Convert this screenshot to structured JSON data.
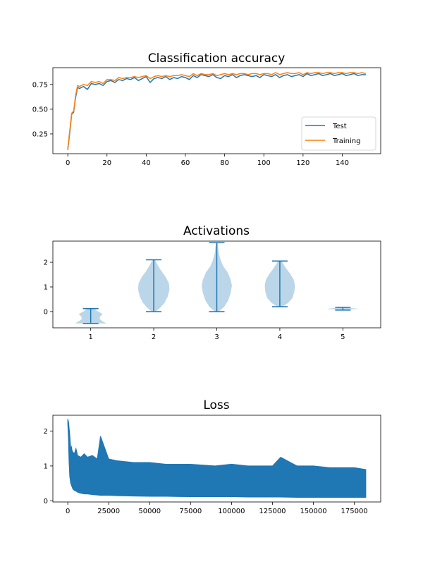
{
  "colors": {
    "test": "#1f77b4",
    "training": "#ff7f0e",
    "violin_fill": "#1f77b4",
    "axes": "#000000"
  },
  "chart_data": [
    {
      "type": "line",
      "title": "Classification accuracy",
      "xlim": [
        -7.6,
        159.6
      ],
      "ylim": [
        0.05,
        0.92
      ],
      "xticks": [
        0,
        20,
        40,
        60,
        80,
        100,
        120,
        140
      ],
      "yticks": [
        0.25,
        0.5,
        0.75
      ],
      "ytick_labels": [
        "0.25",
        "0.50",
        "0.75"
      ],
      "legend": "lower right",
      "series": [
        {
          "name": "Test",
          "color": "#1f77b4",
          "x": [
            0,
            1,
            2,
            3,
            4,
            5,
            6,
            8,
            10,
            12,
            14,
            16,
            18,
            20,
            22,
            24,
            26,
            28,
            30,
            32,
            34,
            36,
            38,
            40,
            42,
            44,
            46,
            48,
            50,
            52,
            54,
            56,
            58,
            60,
            62,
            64,
            66,
            68,
            70,
            72,
            74,
            76,
            78,
            80,
            82,
            84,
            86,
            88,
            90,
            92,
            94,
            96,
            98,
            100,
            102,
            104,
            106,
            108,
            110,
            112,
            114,
            116,
            118,
            120,
            122,
            124,
            126,
            128,
            130,
            132,
            134,
            136,
            138,
            140,
            142,
            144,
            146,
            148,
            150,
            152
          ],
          "y": [
            0.09,
            0.26,
            0.45,
            0.47,
            0.62,
            0.72,
            0.71,
            0.73,
            0.7,
            0.76,
            0.75,
            0.76,
            0.74,
            0.78,
            0.79,
            0.77,
            0.8,
            0.79,
            0.81,
            0.8,
            0.82,
            0.79,
            0.81,
            0.83,
            0.77,
            0.81,
            0.82,
            0.81,
            0.83,
            0.8,
            0.82,
            0.81,
            0.83,
            0.82,
            0.8,
            0.84,
            0.82,
            0.85,
            0.84,
            0.83,
            0.85,
            0.82,
            0.81,
            0.84,
            0.83,
            0.85,
            0.82,
            0.84,
            0.85,
            0.84,
            0.83,
            0.84,
            0.82,
            0.85,
            0.84,
            0.83,
            0.85,
            0.82,
            0.84,
            0.85,
            0.83,
            0.84,
            0.85,
            0.83,
            0.86,
            0.84,
            0.85,
            0.86,
            0.84,
            0.85,
            0.86,
            0.84,
            0.85,
            0.86,
            0.84,
            0.85,
            0.86,
            0.84,
            0.85,
            0.85
          ]
        },
        {
          "name": "Training",
          "color": "#ff7f0e",
          "x": [
            0,
            1,
            2,
            3,
            4,
            5,
            6,
            8,
            10,
            12,
            14,
            16,
            18,
            20,
            22,
            24,
            26,
            28,
            30,
            32,
            34,
            36,
            38,
            40,
            42,
            44,
            46,
            48,
            50,
            52,
            54,
            56,
            58,
            60,
            62,
            64,
            66,
            68,
            70,
            72,
            74,
            76,
            78,
            80,
            82,
            84,
            86,
            88,
            90,
            92,
            94,
            96,
            98,
            100,
            102,
            104,
            106,
            108,
            110,
            112,
            114,
            116,
            118,
            120,
            122,
            124,
            126,
            128,
            130,
            132,
            134,
            136,
            138,
            140,
            142,
            144,
            146,
            148,
            150,
            152
          ],
          "y": [
            0.1,
            0.28,
            0.46,
            0.48,
            0.64,
            0.74,
            0.73,
            0.75,
            0.74,
            0.78,
            0.77,
            0.78,
            0.76,
            0.8,
            0.8,
            0.79,
            0.82,
            0.81,
            0.82,
            0.82,
            0.83,
            0.82,
            0.83,
            0.84,
            0.81,
            0.83,
            0.84,
            0.83,
            0.84,
            0.83,
            0.84,
            0.84,
            0.85,
            0.84,
            0.83,
            0.86,
            0.84,
            0.86,
            0.85,
            0.85,
            0.86,
            0.84,
            0.85,
            0.86,
            0.85,
            0.86,
            0.85,
            0.86,
            0.86,
            0.85,
            0.86,
            0.86,
            0.85,
            0.86,
            0.86,
            0.85,
            0.87,
            0.85,
            0.86,
            0.87,
            0.86,
            0.86,
            0.87,
            0.85,
            0.87,
            0.86,
            0.87,
            0.87,
            0.86,
            0.87,
            0.87,
            0.86,
            0.87,
            0.87,
            0.86,
            0.87,
            0.87,
            0.86,
            0.87,
            0.86
          ]
        }
      ]
    },
    {
      "type": "violin",
      "title": "Activations",
      "xlim": [
        0.4,
        5.6
      ],
      "ylim": [
        -0.66,
        2.86
      ],
      "xticks": [
        1,
        2,
        3,
        4,
        5
      ],
      "yticks": [
        0,
        1,
        2
      ],
      "violins": [
        {
          "position": 1,
          "min": -0.48,
          "max": 0.12,
          "profile": [
            [
              -0.48,
              0.25
            ],
            [
              -0.44,
              0.22
            ],
            [
              -0.38,
              0.18
            ],
            [
              -0.3,
              0.14
            ],
            [
              -0.2,
              0.15
            ],
            [
              -0.1,
              0.19
            ],
            [
              0.0,
              0.12
            ],
            [
              0.06,
              0.08
            ],
            [
              0.12,
              0.06
            ]
          ]
        },
        {
          "position": 2,
          "min": 0.0,
          "max": 2.1,
          "profile": [
            [
              0.0,
              0.03
            ],
            [
              0.15,
              0.1
            ],
            [
              0.35,
              0.17
            ],
            [
              0.6,
              0.22
            ],
            [
              0.9,
              0.25
            ],
            [
              1.15,
              0.24
            ],
            [
              1.4,
              0.19
            ],
            [
              1.65,
              0.12
            ],
            [
              1.85,
              0.07
            ],
            [
              2.0,
              0.04
            ],
            [
              2.1,
              0.02
            ]
          ]
        },
        {
          "position": 3,
          "min": 0.0,
          "max": 2.8,
          "profile": [
            [
              0.0,
              0.03
            ],
            [
              0.2,
              0.12
            ],
            [
              0.45,
              0.18
            ],
            [
              0.75,
              0.22
            ],
            [
              1.05,
              0.24
            ],
            [
              1.3,
              0.22
            ],
            [
              1.6,
              0.17
            ],
            [
              1.85,
              0.1
            ],
            [
              2.1,
              0.06
            ],
            [
              2.4,
              0.03
            ],
            [
              2.65,
              0.02
            ],
            [
              2.8,
              0.01
            ]
          ]
        },
        {
          "position": 4,
          "min": 0.2,
          "max": 2.05,
          "profile": [
            [
              0.2,
              0.04
            ],
            [
              0.35,
              0.13
            ],
            [
              0.55,
              0.2
            ],
            [
              0.8,
              0.23
            ],
            [
              1.05,
              0.24
            ],
            [
              1.3,
              0.22
            ],
            [
              1.55,
              0.16
            ],
            [
              1.75,
              0.1
            ],
            [
              1.95,
              0.05
            ],
            [
              2.05,
              0.03
            ]
          ]
        },
        {
          "position": 5,
          "min": 0.06,
          "max": 0.17,
          "profile": [
            [
              0.06,
              0.05
            ],
            [
              0.09,
              0.14
            ],
            [
              0.11,
              0.26
            ],
            [
              0.13,
              0.18
            ],
            [
              0.15,
              0.08
            ],
            [
              0.17,
              0.03
            ]
          ]
        }
      ]
    },
    {
      "type": "line",
      "title": "Loss",
      "xlim": [
        -9100,
        191100
      ],
      "ylim": [
        -0.03,
        2.45
      ],
      "xticks": [
        0,
        25000,
        50000,
        75000,
        100000,
        125000,
        150000,
        175000
      ],
      "yticks": [
        0,
        1,
        2
      ],
      "series": [
        {
          "color": "#1f77b4",
          "x": [
            0,
            200,
            400,
            600,
            800,
            1000,
            1200,
            1500,
            1800,
            2200,
            2600,
            3000,
            3500,
            4000,
            5000,
            6000,
            8000,
            10000,
            12000,
            15000,
            18000,
            20000,
            25000,
            30000,
            40000,
            50000,
            60000,
            75000,
            90000,
            100000,
            110000,
            125000,
            130000,
            140000,
            150000,
            160000,
            170000,
            175000,
            182000
          ],
          "lower": [
            2.2,
            2.0,
            1.8,
            1.4,
            1.1,
            0.9,
            0.7,
            0.6,
            0.5,
            0.45,
            0.4,
            0.35,
            0.32,
            0.3,
            0.28,
            0.25,
            0.22,
            0.2,
            0.2,
            0.18,
            0.17,
            0.16,
            0.16,
            0.15,
            0.14,
            0.13,
            0.13,
            0.12,
            0.12,
            0.12,
            0.11,
            0.11,
            0.11,
            0.1,
            0.1,
            0.1,
            0.1,
            0.1,
            0.1
          ],
          "upper": [
            2.35,
            2.3,
            2.28,
            2.2,
            2.1,
            2.0,
            1.9,
            1.7,
            1.5,
            1.55,
            1.45,
            1.4,
            1.38,
            1.35,
            1.5,
            1.3,
            1.25,
            1.35,
            1.25,
            1.3,
            1.2,
            1.85,
            1.2,
            1.15,
            1.1,
            1.1,
            1.05,
            1.05,
            1.0,
            1.05,
            1.0,
            1.0,
            1.25,
            1.0,
            1.0,
            0.95,
            0.95,
            0.95,
            0.9
          ]
        }
      ]
    }
  ]
}
